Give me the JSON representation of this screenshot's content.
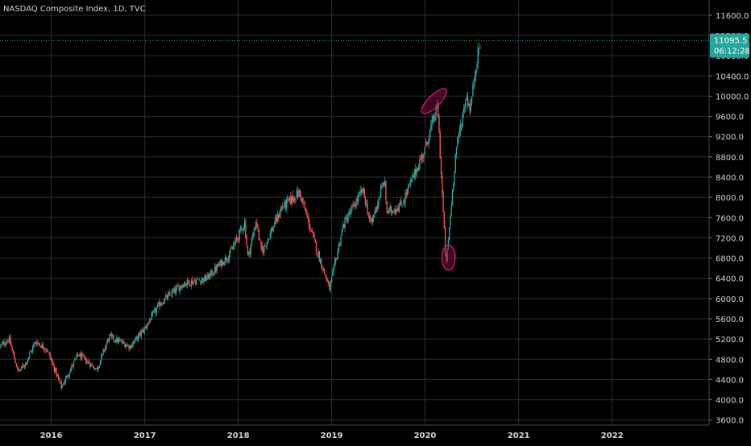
{
  "header": {
    "title": "NASDAQ Composite Index, 1D, TVC"
  },
  "colors": {
    "background": "#000000",
    "grid": "#2a2e39",
    "axis_text": "#d1d4dc",
    "up": "#26a69a",
    "down": "#ef5350",
    "price_badge": "#26a69a",
    "ellipse_fill": "#880e4f",
    "ellipse_stroke": "#e91e63"
  },
  "price_badge": {
    "price": "11095.5",
    "countdown": "06:12:28"
  },
  "chart_data": {
    "type": "candlestick",
    "x_range": [
      "2015-06-15",
      "2023-01-15"
    ],
    "ylim": [
      3500,
      11900
    ],
    "y_ticks": [
      3600,
      4000,
      4400,
      4800,
      5200,
      5600,
      6000,
      6400,
      6800,
      7200,
      7600,
      8000,
      8400,
      8800,
      9200,
      9600,
      10000,
      10400,
      10800,
      11200,
      11600
    ],
    "y_tick_labels": [
      "3600.0",
      "4000.0",
      "4400.0",
      "4800.0",
      "5200.0",
      "5600.0",
      "6000.0",
      "6400.0",
      "6800.0",
      "7200.0",
      "7600.0",
      "8000.0",
      "8400.0",
      "8800.0",
      "9200.0",
      "9600.0",
      "10000.0",
      "10400.0",
      "10800.0",
      "11200.0",
      "11600.0"
    ],
    "x_ticks": [
      "2016-01-01",
      "2017-01-01",
      "2018-01-01",
      "2019-01-01",
      "2020-01-01",
      "2021-01-01",
      "2022-01-01"
    ],
    "x_tick_labels": [
      "2016",
      "2017",
      "2018",
      "2019",
      "2020",
      "2021",
      "2022"
    ],
    "last_price": 11095.5,
    "series": [
      {
        "name": "",
        "price_path": [
          [
            "2015-06-15",
            5050
          ],
          [
            "2015-07-20",
            5200
          ],
          [
            "2015-08-25",
            4550
          ],
          [
            "2015-09-20",
            4700
          ],
          [
            "2015-11-01",
            5150
          ],
          [
            "2015-12-15",
            5000
          ],
          [
            "2016-02-10",
            4250
          ],
          [
            "2016-04-15",
            4900
          ],
          [
            "2016-06-27",
            4600
          ],
          [
            "2016-08-15",
            5250
          ],
          [
            "2016-11-04",
            5050
          ],
          [
            "2016-12-30",
            5400
          ],
          [
            "2017-03-01",
            5900
          ],
          [
            "2017-06-01",
            6300
          ],
          [
            "2017-09-01",
            6400
          ],
          [
            "2017-12-01",
            6900
          ],
          [
            "2018-01-26",
            7500
          ],
          [
            "2018-02-08",
            6800
          ],
          [
            "2018-03-12",
            7550
          ],
          [
            "2018-04-02",
            6900
          ],
          [
            "2018-06-20",
            7800
          ],
          [
            "2018-08-29",
            8100
          ],
          [
            "2018-10-29",
            7050
          ],
          [
            "2018-12-24",
            6190
          ],
          [
            "2019-02-15",
            7450
          ],
          [
            "2019-05-03",
            8150
          ],
          [
            "2019-06-03",
            7450
          ],
          [
            "2019-07-26",
            8350
          ],
          [
            "2019-08-05",
            7700
          ],
          [
            "2019-10-01",
            7850
          ],
          [
            "2019-12-31",
            8950
          ],
          [
            "2020-02-19",
            9820
          ],
          [
            "2020-03-23",
            6630
          ],
          [
            "2020-04-30",
            8900
          ],
          [
            "2020-06-10",
            10000
          ],
          [
            "2020-06-26",
            9750
          ],
          [
            "2020-07-20",
            10700
          ],
          [
            "2020-08-06",
            11095.5
          ]
        ]
      }
    ],
    "annotations": [
      {
        "type": "ellipse",
        "center": [
          "2020-02-05",
          9900
        ],
        "radius_days": 23,
        "radius_price": 330,
        "angle_deg": 45
      },
      {
        "type": "ellipse",
        "center": [
          "2020-04-02",
          6810
        ],
        "radius_days": 26,
        "radius_price": 250,
        "angle_deg": 0
      }
    ]
  }
}
